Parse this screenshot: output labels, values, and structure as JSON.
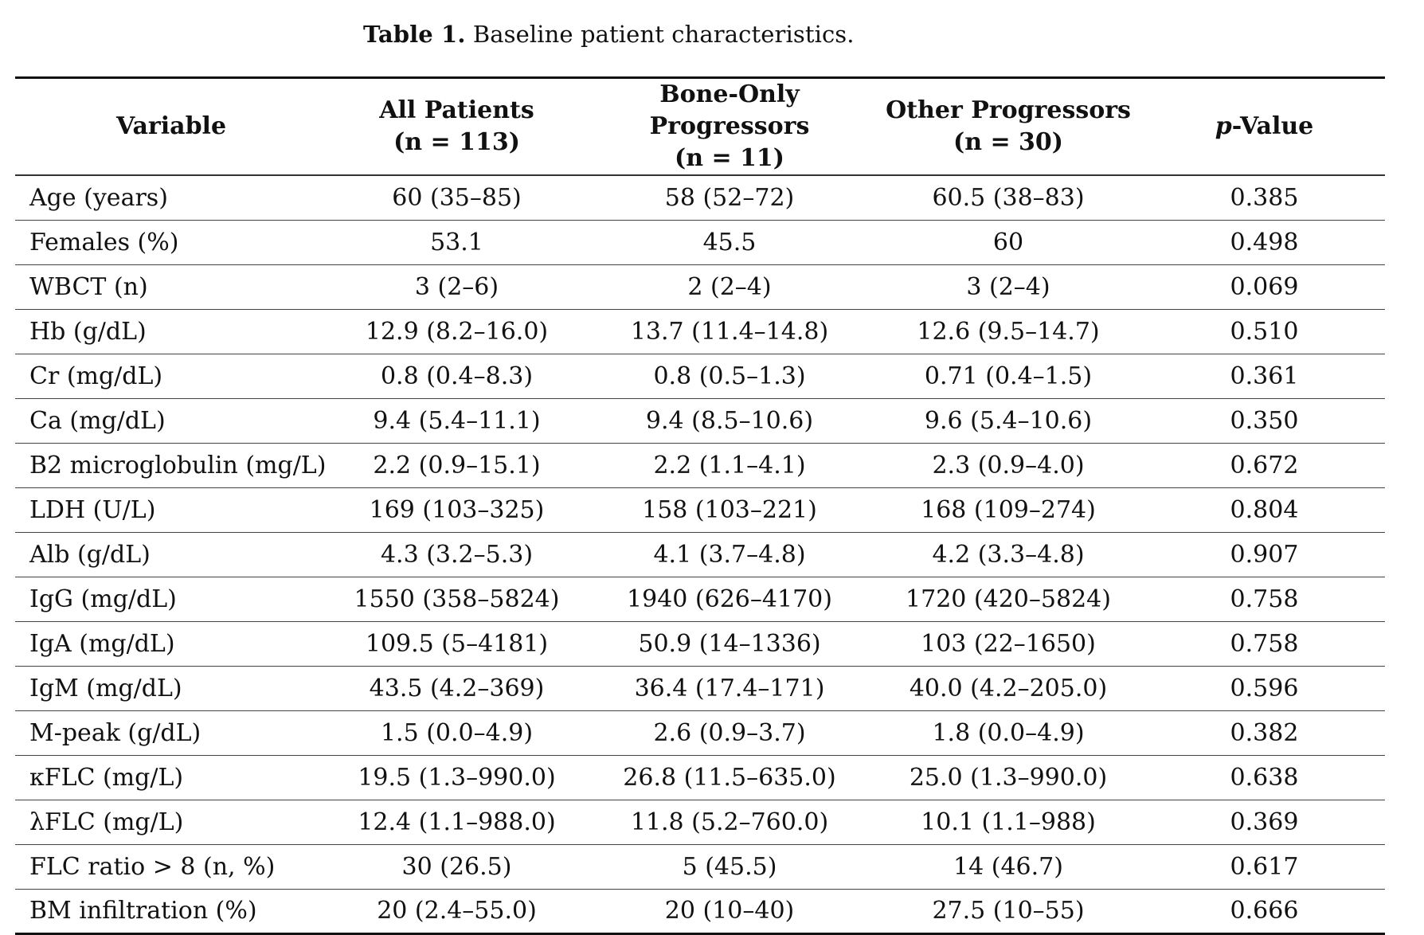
{
  "caption": {
    "label": "Table 1.",
    "text": "Baseline patient characteristics."
  },
  "table": {
    "headers": [
      {
        "line1": "Variable",
        "line2": ""
      },
      {
        "line1": "All Patients",
        "line2": "(n = 113)"
      },
      {
        "line1": "Bone-Only Progressors",
        "line2": "(n = 11)"
      },
      {
        "line1": "Other Progressors",
        "line2": "(n = 30)"
      },
      {
        "line1_italic": "p",
        "line1": "-Value",
        "line2": ""
      }
    ],
    "rows": [
      [
        "Age (years)",
        "60 (35–85)",
        "58 (52–72)",
        "60.5 (38–83)",
        "0.385"
      ],
      [
        "Females (%)",
        "53.1",
        "45.5",
        "60",
        "0.498"
      ],
      [
        "WBCT (n)",
        "3 (2–6)",
        "2 (2–4)",
        "3 (2–4)",
        "0.069"
      ],
      [
        "Hb (g/dL)",
        "12.9 (8.2–16.0)",
        "13.7 (11.4–14.8)",
        "12.6 (9.5–14.7)",
        "0.510"
      ],
      [
        "Cr (mg/dL)",
        "0.8 (0.4–8.3)",
        "0.8 (0.5–1.3)",
        "0.71 (0.4–1.5)",
        "0.361"
      ],
      [
        "Ca (mg/dL)",
        "9.4 (5.4–11.1)",
        "9.4 (8.5–10.6)",
        "9.6 (5.4–10.6)",
        "0.350"
      ],
      [
        "B2 microglobulin (mg/L)",
        "2.2 (0.9–15.1)",
        "2.2 (1.1–4.1)",
        "2.3 (0.9–4.0)",
        "0.672"
      ],
      [
        "LDH (U/L)",
        "169 (103–325)",
        "158 (103–221)",
        "168 (109–274)",
        "0.804"
      ],
      [
        "Alb (g/dL)",
        "4.3 (3.2–5.3)",
        "4.1 (3.7–4.8)",
        "4.2 (3.3–4.8)",
        "0.907"
      ],
      [
        "IgG (mg/dL)",
        "1550 (358–5824)",
        "1940 (626–4170)",
        "1720 (420–5824)",
        "0.758"
      ],
      [
        "IgA (mg/dL)",
        "109.5 (5–4181)",
        "50.9 (14–1336)",
        "103 (22–1650)",
        "0.758"
      ],
      [
        "IgM (mg/dL)",
        "43.5 (4.2–369)",
        "36.4 (17.4–171)",
        "40.0 (4.2–205.0)",
        "0.596"
      ],
      [
        "M-peak (g/dL)",
        "1.5 (0.0–4.9)",
        "2.6 (0.9–3.7)",
        "1.8 (0.0–4.9)",
        "0.382"
      ],
      [
        "κFLC (mg/L)",
        "19.5 (1.3–990.0)",
        "26.8 (11.5–635.0)",
        "25.0 (1.3–990.0)",
        "0.638"
      ],
      [
        "λFLC (mg/L)",
        "12.4 (1.1–988.0)",
        "11.8 (5.2–760.0)",
        "10.1 (1.1–988)",
        "0.369"
      ],
      [
        "FLC ratio > 8 (n, %)",
        "30 (26.5)",
        "5 (45.5)",
        "14 (46.7)",
        "0.617"
      ],
      [
        "BM infiltration (%)",
        "20 (2.4–55.0)",
        "20 (10–40)",
        "27.5 (10–55)",
        "0.666"
      ]
    ]
  }
}
